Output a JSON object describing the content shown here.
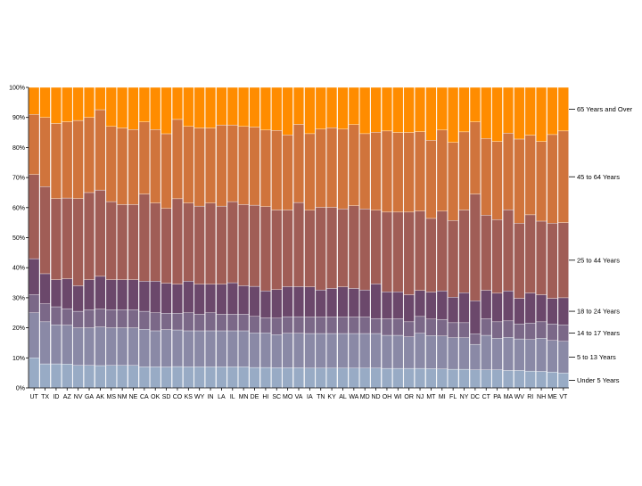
{
  "chart_data": {
    "type": "bar",
    "stacked": "normalized",
    "title": "",
    "xlabel": "",
    "ylabel": "",
    "ylim": [
      0,
      1
    ],
    "y_ticks": [
      "0%",
      "10%",
      "20%",
      "30%",
      "40%",
      "50%",
      "60%",
      "70%",
      "80%",
      "90%",
      "100%"
    ],
    "grid": false,
    "legend": "right",
    "categories": [
      "UT",
      "TX",
      "ID",
      "AZ",
      "NV",
      "GA",
      "AK",
      "MS",
      "NM",
      "NE",
      "CA",
      "OK",
      "SD",
      "CO",
      "KS",
      "WY",
      "IN",
      "LA",
      "IL",
      "MN",
      "DE",
      "HI",
      "SC",
      "MO",
      "VA",
      "IA",
      "TN",
      "KY",
      "AL",
      "WA",
      "MD",
      "ND",
      "OH",
      "WI",
      "OR",
      "NJ",
      "MT",
      "MI",
      "FL",
      "NY",
      "DC",
      "CT",
      "PA",
      "MA",
      "WV",
      "RI",
      "NH",
      "ME",
      "VT"
    ],
    "series": [
      {
        "name": "Under 5 Years",
        "color": "#98abc5",
        "values": [
          0.1,
          0.08,
          0.08,
          0.08,
          0.075,
          0.075,
          0.075,
          0.075,
          0.075,
          0.075,
          0.07,
          0.07,
          0.07,
          0.07,
          0.07,
          0.07,
          0.07,
          0.07,
          0.07,
          0.07,
          0.068,
          0.068,
          0.067,
          0.067,
          0.067,
          0.066,
          0.066,
          0.066,
          0.066,
          0.066,
          0.066,
          0.066,
          0.065,
          0.065,
          0.065,
          0.064,
          0.064,
          0.063,
          0.062,
          0.062,
          0.06,
          0.06,
          0.06,
          0.058,
          0.058,
          0.056,
          0.055,
          0.053,
          0.05
        ]
      },
      {
        "name": "5 to 13 Years",
        "color": "#8a89a6",
        "values": [
          0.15,
          0.14,
          0.13,
          0.13,
          0.125,
          0.125,
          0.13,
          0.125,
          0.125,
          0.125,
          0.125,
          0.12,
          0.125,
          0.12,
          0.12,
          0.12,
          0.12,
          0.12,
          0.12,
          0.12,
          0.115,
          0.115,
          0.11,
          0.115,
          0.115,
          0.115,
          0.115,
          0.115,
          0.115,
          0.115,
          0.115,
          0.115,
          0.11,
          0.11,
          0.105,
          0.115,
          0.11,
          0.11,
          0.105,
          0.105,
          0.085,
          0.115,
          0.105,
          0.11,
          0.105,
          0.105,
          0.11,
          0.105,
          0.105
        ]
      },
      {
        "name": "14 to 17 Years",
        "color": "#7b6888",
        "values": [
          0.06,
          0.06,
          0.06,
          0.055,
          0.055,
          0.06,
          0.06,
          0.06,
          0.06,
          0.06,
          0.06,
          0.06,
          0.055,
          0.055,
          0.06,
          0.055,
          0.06,
          0.055,
          0.055,
          0.055,
          0.055,
          0.05,
          0.055,
          0.055,
          0.055,
          0.055,
          0.055,
          0.055,
          0.055,
          0.055,
          0.055,
          0.05,
          0.055,
          0.055,
          0.05,
          0.055,
          0.055,
          0.055,
          0.05,
          0.05,
          0.035,
          0.055,
          0.055,
          0.055,
          0.05,
          0.055,
          0.055,
          0.055,
          0.055
        ]
      },
      {
        "name": "18 to 24 Years",
        "color": "#6b486b",
        "values": [
          0.12,
          0.1,
          0.09,
          0.1,
          0.085,
          0.1,
          0.11,
          0.1,
          0.1,
          0.1,
          0.1,
          0.105,
          0.1,
          0.095,
          0.105,
          0.1,
          0.095,
          0.1,
          0.105,
          0.095,
          0.1,
          0.09,
          0.095,
          0.1,
          0.1,
          0.1,
          0.09,
          0.095,
          0.1,
          0.095,
          0.09,
          0.115,
          0.09,
          0.09,
          0.09,
          0.085,
          0.09,
          0.095,
          0.085,
          0.1,
          0.11,
          0.095,
          0.095,
          0.1,
          0.085,
          0.1,
          0.09,
          0.085,
          0.09
        ]
      },
      {
        "name": "25 to 44 Years",
        "color": "#a05d56",
        "values": [
          0.28,
          0.29,
          0.27,
          0.27,
          0.29,
          0.29,
          0.29,
          0.26,
          0.25,
          0.25,
          0.29,
          0.26,
          0.25,
          0.28,
          0.26,
          0.26,
          0.27,
          0.26,
          0.27,
          0.27,
          0.27,
          0.28,
          0.265,
          0.255,
          0.28,
          0.255,
          0.275,
          0.27,
          0.26,
          0.275,
          0.27,
          0.245,
          0.265,
          0.265,
          0.275,
          0.26,
          0.245,
          0.265,
          0.255,
          0.275,
          0.355,
          0.25,
          0.245,
          0.27,
          0.25,
          0.26,
          0.245,
          0.25,
          0.25
        ]
      },
      {
        "name": "45 to 64 Years",
        "color": "#d0743c",
        "values": [
          0.2,
          0.23,
          0.25,
          0.255,
          0.26,
          0.25,
          0.27,
          0.25,
          0.255,
          0.25,
          0.24,
          0.245,
          0.25,
          0.26,
          0.255,
          0.26,
          0.25,
          0.27,
          0.255,
          0.26,
          0.26,
          0.255,
          0.265,
          0.25,
          0.26,
          0.255,
          0.26,
          0.265,
          0.265,
          0.27,
          0.25,
          0.26,
          0.27,
          0.265,
          0.265,
          0.26,
          0.26,
          0.27,
          0.26,
          0.26,
          0.24,
          0.255,
          0.26,
          0.255,
          0.28,
          0.265,
          0.265,
          0.295,
          0.305
        ]
      },
      {
        "name": "65 Years and Over",
        "color": "#ff8c00",
        "values": [
          0.09,
          0.1,
          0.12,
          0.115,
          0.11,
          0.1,
          0.075,
          0.13,
          0.135,
          0.14,
          0.115,
          0.14,
          0.155,
          0.105,
          0.13,
          0.135,
          0.135,
          0.125,
          0.125,
          0.13,
          0.132,
          0.142,
          0.143,
          0.158,
          0.123,
          0.154,
          0.139,
          0.134,
          0.139,
          0.124,
          0.154,
          0.149,
          0.145,
          0.15,
          0.15,
          0.145,
          0.176,
          0.142,
          0.183,
          0.148,
          0.115,
          0.17,
          0.18,
          0.152,
          0.172,
          0.159,
          0.18,
          0.157,
          0.145
        ]
      }
    ]
  }
}
